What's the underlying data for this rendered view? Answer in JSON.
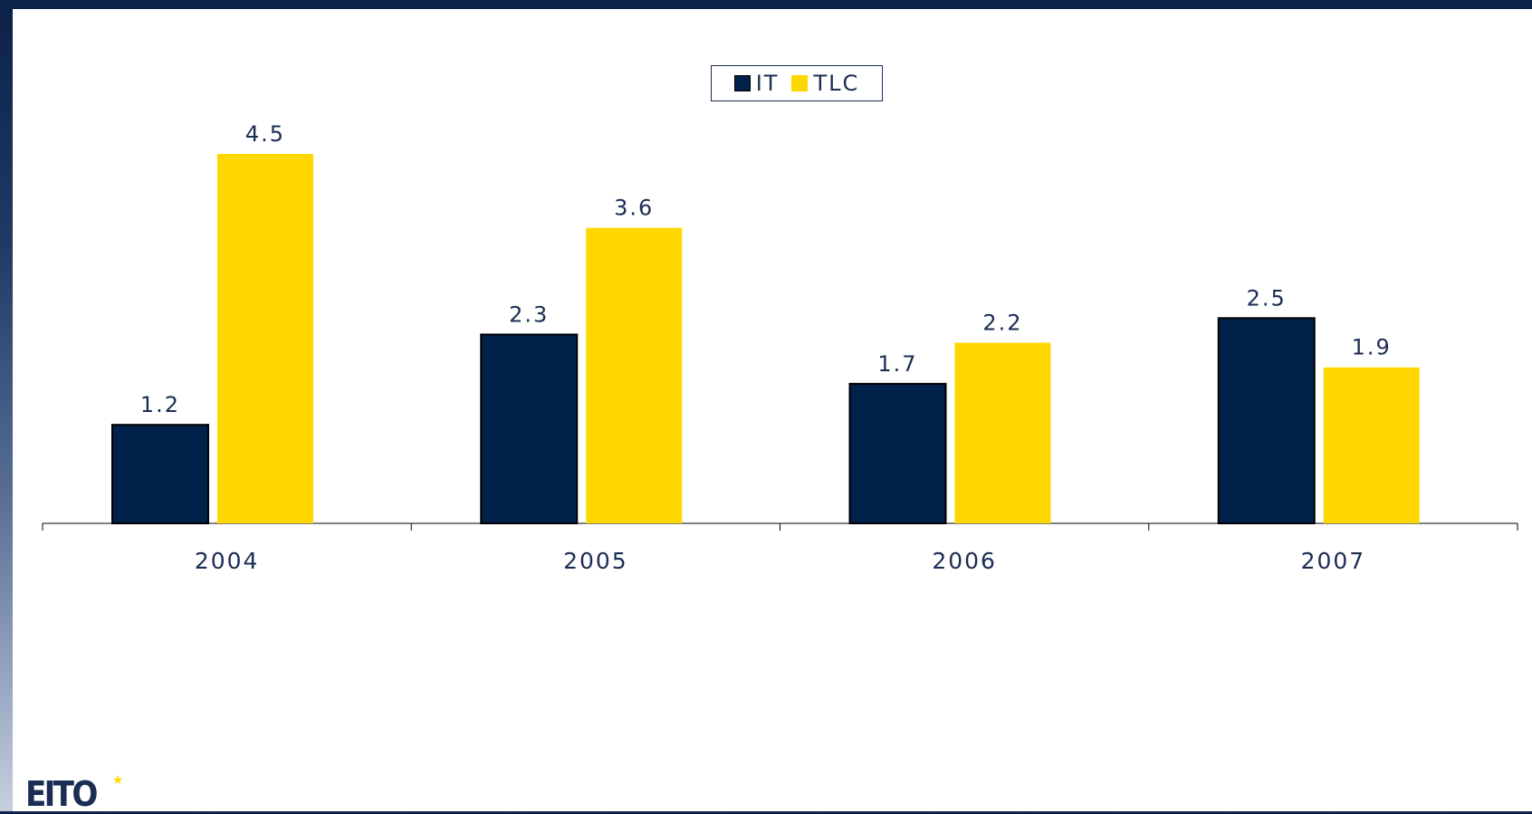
{
  "chart_data": {
    "type": "bar",
    "categories": [
      "2004",
      "2005",
      "2006",
      "2007"
    ],
    "series": [
      {
        "name": "IT",
        "values": [
          1.2,
          2.3,
          1.7,
          2.5
        ],
        "color": "#00214a"
      },
      {
        "name": "TLC",
        "values": [
          4.5,
          3.6,
          2.2,
          1.9
        ],
        "color": "#ffd700"
      }
    ],
    "data_labels": true,
    "ylim": [
      0,
      5
    ],
    "legend_position": "top-center",
    "grid": false,
    "title": "",
    "xlabel": "",
    "ylabel": ""
  },
  "logo": {
    "text": "EITO"
  },
  "colors": {
    "frame": "#0c2148",
    "text": "#1b2d52",
    "it": "#00214a",
    "tlc": "#ffd700"
  }
}
